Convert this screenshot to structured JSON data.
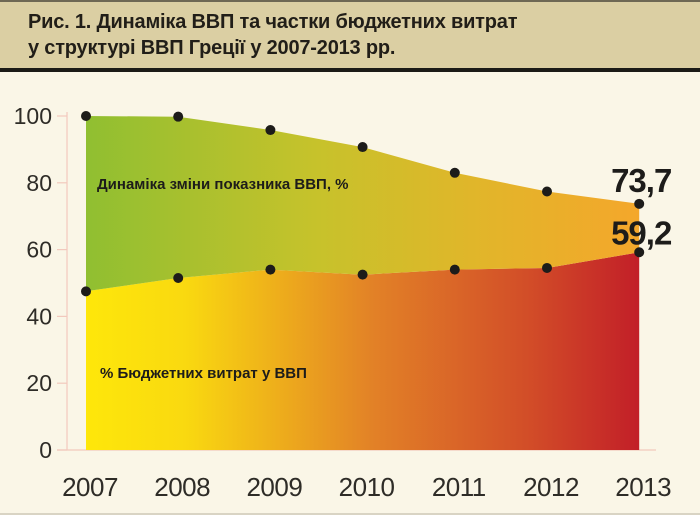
{
  "header": {
    "title_line1": "Рис. 1. Динаміка ВВП та частки бюджетних витрат",
    "title_line2": "у структурі ВВП Греції у 2007-2013 рр."
  },
  "chart_data": {
    "type": "area",
    "title": "Динаміка ВВП та частки бюджетних витрат у структурі ВВП Греції у 2007-2013 рр.",
    "categories": [
      "2007",
      "2008",
      "2009",
      "2010",
      "2011",
      "2012",
      "2013"
    ],
    "series": [
      {
        "name": "Динаміка зміни показника ВВП, %",
        "values": [
          100,
          99.8,
          95.8,
          90.7,
          83,
          77.4,
          73.7
        ],
        "end_label": "73,7"
      },
      {
        "name": "% Бюджетних витрат у ВВП",
        "values": [
          47.5,
          51.5,
          54,
          52.5,
          54,
          54.5,
          59.2
        ],
        "end_label": "59,2"
      }
    ],
    "xlabel": "",
    "ylabel": "",
    "y_ticks": [
      0,
      20,
      40,
      60,
      80,
      100
    ],
    "ylim": [
      0,
      100
    ],
    "grid": "short left ticks and baseline only",
    "legend": "series names drawn inside the colored areas",
    "markers": "black dots on every data point of both series",
    "colors": {
      "gdp_area_gradient": [
        {
          "offset": "0%",
          "color": "#90bf31"
        },
        {
          "offset": "42%",
          "color": "#c7c22b"
        },
        {
          "offset": "72%",
          "color": "#e2b52a"
        },
        {
          "offset": "100%",
          "color": "#f4a72b"
        }
      ],
      "budget_area_gradient": [
        {
          "offset": "0%",
          "color": "#fee70a"
        },
        {
          "offset": "18%",
          "color": "#f9d910"
        },
        {
          "offset": "52%",
          "color": "#e28127"
        },
        {
          "offset": "80%",
          "color": "#d24d28"
        },
        {
          "offset": "100%",
          "color": "#c21f28"
        }
      ],
      "marker": "#1d1c1a",
      "axis": "#f2c9bd",
      "tick_text": "#2e2c27",
      "end_label_text": "#1d1c1a",
      "page_background": "#faf6e7",
      "header_background": "#dbcfa3",
      "divider": "#1c1b17"
    }
  }
}
